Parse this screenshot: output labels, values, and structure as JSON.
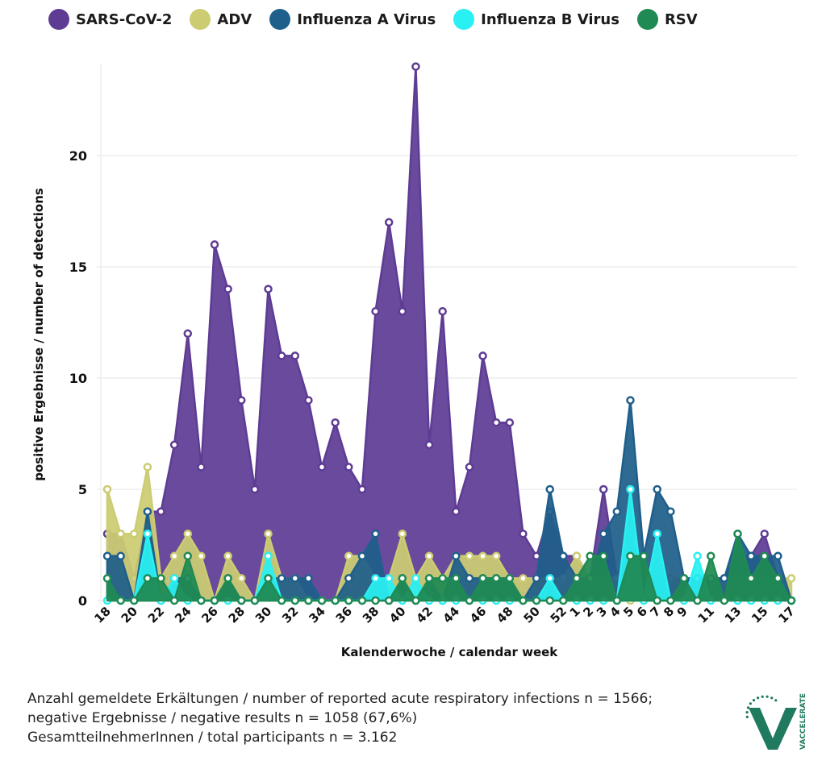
{
  "colors": {
    "SARS-CoV-2": "#5e3c94",
    "ADV": "#cccc72",
    "Influenza A Virus": "#1f5f8b",
    "Influenza B Virus": "#29f0f2",
    "RSV": "#1f8a53",
    "grid": "#e6e6e6",
    "logo": "#1f7a60"
  },
  "chart_data": {
    "type": "area",
    "x": [
      "18",
      "19",
      "20",
      "21",
      "22",
      "23",
      "24",
      "25",
      "26",
      "27",
      "28",
      "29",
      "30",
      "31",
      "32",
      "33",
      "34",
      "35",
      "36",
      "37",
      "38",
      "39",
      "40",
      "41",
      "42",
      "43",
      "44",
      "45",
      "46",
      "47",
      "48",
      "49",
      "50",
      "51",
      "52",
      "1",
      "2",
      "3",
      "4",
      "5",
      "6",
      "7",
      "8",
      "9",
      "10",
      "11",
      "12",
      "13",
      "14",
      "15",
      "16",
      "17"
    ],
    "tick_labels": [
      "18",
      "20",
      "22",
      "24",
      "26",
      "28",
      "30",
      "32",
      "34",
      "36",
      "38",
      "40",
      "42",
      "44",
      "46",
      "48",
      "50",
      "52",
      "1",
      "2",
      "3",
      "4",
      "5",
      "6",
      "7",
      "8",
      "9",
      "11",
      "13",
      "15",
      "17"
    ],
    "ylabel": "positive Ergebnisse / number of detections",
    "xlabel": "Kalenderwoche / calendar week",
    "yticks": [
      0,
      5,
      10,
      15,
      20
    ],
    "ylim": [
      0,
      24
    ],
    "grid": true,
    "legend_position": "top",
    "series": [
      {
        "name": "SARS-CoV-2",
        "values": [
          3,
          3,
          1,
          4,
          4,
          7,
          12,
          6,
          16,
          14,
          9,
          5,
          14,
          11,
          11,
          9,
          6,
          8,
          6,
          5,
          13,
          17,
          13,
          24,
          7,
          13,
          4,
          6,
          11,
          8,
          8,
          3,
          2,
          4,
          2,
          2,
          1,
          5,
          1,
          3,
          1,
          1,
          1,
          1,
          1,
          1,
          1,
          2,
          2,
          3,
          1,
          0
        ]
      },
      {
        "name": "ADV",
        "values": [
          5,
          3,
          3,
          6,
          1,
          2,
          3,
          2,
          0,
          2,
          1,
          0,
          3,
          1,
          1,
          0,
          0,
          0,
          2,
          2,
          1,
          1,
          3,
          1,
          2,
          1,
          2,
          2,
          2,
          2,
          1,
          1,
          1,
          1,
          1,
          2,
          1,
          1,
          1,
          0,
          1,
          0,
          1,
          1,
          0,
          1,
          1,
          1,
          1,
          1,
          1,
          1
        ]
      },
      {
        "name": "Influenza A Virus",
        "values": [
          2,
          2,
          0,
          4,
          0,
          1,
          1,
          0,
          0,
          1,
          0,
          0,
          1,
          1,
          1,
          1,
          0,
          0,
          1,
          2,
          3,
          0,
          1,
          0,
          1,
          0,
          2,
          1,
          1,
          1,
          1,
          0,
          1,
          5,
          2,
          1,
          1,
          3,
          4,
          9,
          2,
          5,
          4,
          1,
          1,
          1,
          1,
          3,
          2,
          2,
          2,
          0
        ]
      },
      {
        "name": "Influenza B Virus",
        "values": [
          0,
          0,
          0,
          3,
          0,
          1,
          0,
          0,
          0,
          0,
          0,
          0,
          2,
          0,
          0,
          0,
          0,
          0,
          0,
          0,
          1,
          1,
          0,
          1,
          0,
          0,
          0,
          0,
          0,
          0,
          0,
          0,
          0,
          1,
          0,
          0,
          0,
          0,
          0,
          5,
          0,
          3,
          0,
          0,
          2,
          0,
          0,
          0,
          0,
          0,
          0,
          0
        ]
      },
      {
        "name": "RSV",
        "values": [
          1,
          0,
          0,
          1,
          1,
          0,
          2,
          0,
          0,
          1,
          0,
          0,
          1,
          0,
          0,
          0,
          0,
          0,
          0,
          0,
          0,
          0,
          1,
          0,
          1,
          1,
          1,
          0,
          1,
          1,
          1,
          0,
          0,
          0,
          0,
          1,
          2,
          2,
          0,
          2,
          2,
          0,
          0,
          1,
          0,
          2,
          0,
          3,
          1,
          2,
          1,
          0
        ]
      }
    ]
  },
  "footer": {
    "line1": "Anzahl gemeldete Erkältungen / number of reported acute respiratory infections n = 1566;",
    "line2": "negative Ergebnisse / negative results n = 1058 (67,6%)",
    "line3": "GesamtteilnehmerInnen / total participants n = 3.162"
  },
  "logo": {
    "text": "VACCELERATE",
    "icon": "vaccelerate-logo"
  }
}
